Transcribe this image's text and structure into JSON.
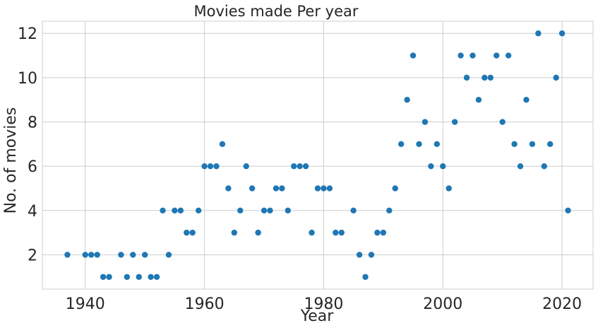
{
  "chart_data": {
    "type": "scatter",
    "title": "Movies made Per year",
    "xlabel": "Year",
    "ylabel": "No. of movies",
    "xlim": [
      1932.8,
      2025.2
    ],
    "ylim": [
      0.45,
      12.55
    ],
    "xticks": [
      1940,
      1960,
      1980,
      2000,
      2020
    ],
    "yticks": [
      2,
      4,
      6,
      8,
      10,
      12
    ],
    "grid": true,
    "color": "#1f77b4",
    "points": [
      [
        1937,
        2
      ],
      [
        1940,
        2
      ],
      [
        1941,
        2
      ],
      [
        1942,
        2
      ],
      [
        1943,
        1
      ],
      [
        1944,
        1
      ],
      [
        1946,
        2
      ],
      [
        1947,
        1
      ],
      [
        1948,
        2
      ],
      [
        1949,
        1
      ],
      [
        1950,
        2
      ],
      [
        1951,
        1
      ],
      [
        1952,
        1
      ],
      [
        1953,
        4
      ],
      [
        1954,
        2
      ],
      [
        1955,
        4
      ],
      [
        1956,
        4
      ],
      [
        1957,
        3
      ],
      [
        1958,
        3
      ],
      [
        1959,
        4
      ],
      [
        1960,
        6
      ],
      [
        1961,
        6
      ],
      [
        1962,
        6
      ],
      [
        1963,
        7
      ],
      [
        1964,
        5
      ],
      [
        1965,
        3
      ],
      [
        1966,
        4
      ],
      [
        1967,
        6
      ],
      [
        1968,
        5
      ],
      [
        1969,
        3
      ],
      [
        1970,
        4
      ],
      [
        1971,
        4
      ],
      [
        1972,
        5
      ],
      [
        1973,
        5
      ],
      [
        1974,
        4
      ],
      [
        1975,
        6
      ],
      [
        1976,
        6
      ],
      [
        1977,
        6
      ],
      [
        1978,
        3
      ],
      [
        1979,
        5
      ],
      [
        1980,
        5
      ],
      [
        1981,
        5
      ],
      [
        1982,
        3
      ],
      [
        1983,
        3
      ],
      [
        1985,
        4
      ],
      [
        1986,
        2
      ],
      [
        1987,
        1
      ],
      [
        1988,
        2
      ],
      [
        1989,
        3
      ],
      [
        1990,
        3
      ],
      [
        1991,
        4
      ],
      [
        1992,
        5
      ],
      [
        1993,
        7
      ],
      [
        1994,
        9
      ],
      [
        1995,
        11
      ],
      [
        1996,
        7
      ],
      [
        1997,
        8
      ],
      [
        1998,
        6
      ],
      [
        1999,
        7
      ],
      [
        2000,
        6
      ],
      [
        2001,
        5
      ],
      [
        2002,
        8
      ],
      [
        2003,
        11
      ],
      [
        2004,
        10
      ],
      [
        2005,
        11
      ],
      [
        2006,
        9
      ],
      [
        2007,
        10
      ],
      [
        2008,
        10
      ],
      [
        2009,
        11
      ],
      [
        2010,
        8
      ],
      [
        2011,
        11
      ],
      [
        2012,
        7
      ],
      [
        2013,
        6
      ],
      [
        2014,
        9
      ],
      [
        2015,
        7
      ],
      [
        2016,
        12
      ],
      [
        2017,
        6
      ],
      [
        2018,
        7
      ],
      [
        2019,
        10
      ],
      [
        2020,
        12
      ],
      [
        2021,
        4
      ]
    ]
  }
}
